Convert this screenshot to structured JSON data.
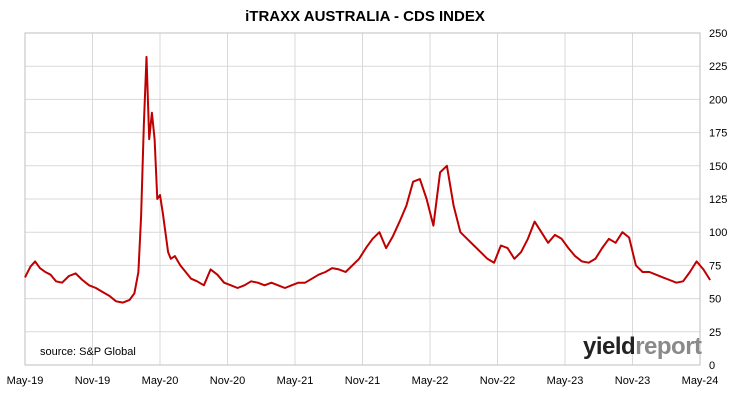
{
  "chart_data": {
    "type": "line",
    "title": "iTRAXX AUSTRALIA - CDS INDEX",
    "source": "source: S&P Global",
    "logo": {
      "part1": "yield",
      "part2": "report"
    },
    "ylim": [
      0,
      250
    ],
    "yticks": [
      "0",
      "25",
      "50",
      "75",
      "100",
      "125",
      "150",
      "175",
      "200",
      "225",
      "250"
    ],
    "xticks": [
      "May-19",
      "Nov-19",
      "May-20",
      "Nov-20",
      "May-21",
      "Nov-21",
      "May-22",
      "Nov-22",
      "May-23",
      "Nov-23",
      "May-24"
    ],
    "grid": true,
    "colors": {
      "series": "#c00000",
      "grid": "#d9d9d9"
    },
    "series": [
      {
        "x": [
          0.0,
          0.08,
          0.15,
          0.22,
          0.3,
          0.38,
          0.46,
          0.55,
          0.65,
          0.75,
          0.85,
          0.95,
          1.05,
          1.15,
          1.25,
          1.35,
          1.45,
          1.55,
          1.62,
          1.68,
          1.72,
          1.76,
          1.8,
          1.84,
          1.88,
          1.92,
          1.96,
          2.0,
          2.04,
          2.08,
          2.12,
          2.16,
          2.22,
          2.3,
          2.38,
          2.46,
          2.55,
          2.65,
          2.75,
          2.85,
          2.95,
          3.05,
          3.15,
          3.25,
          3.35,
          3.45,
          3.55,
          3.65,
          3.75,
          3.85,
          3.95,
          4.05,
          4.15,
          4.25,
          4.35,
          4.45,
          4.55,
          4.65,
          4.75,
          4.85,
          4.95,
          5.05,
          5.15,
          5.25,
          5.35,
          5.45,
          5.55,
          5.65,
          5.75,
          5.85,
          5.95,
          6.05,
          6.15,
          6.25,
          6.35,
          6.45,
          6.55,
          6.65,
          6.75,
          6.85,
          6.95,
          7.05,
          7.15,
          7.25,
          7.35,
          7.45,
          7.55,
          7.65,
          7.75,
          7.85,
          7.95,
          8.05,
          8.15,
          8.25,
          8.35,
          8.45,
          8.55,
          8.65,
          8.75,
          8.85,
          8.95,
          9.05,
          9.15,
          9.25,
          9.35,
          9.45,
          9.55,
          9.65,
          9.75,
          9.85,
          9.95,
          10.05,
          10.15
        ],
        "y": [
          66,
          74,
          78,
          73,
          70,
          68,
          63,
          62,
          67,
          69,
          64,
          60,
          58,
          55,
          52,
          48,
          47,
          49,
          54,
          70,
          112,
          180,
          232,
          170,
          190,
          170,
          125,
          128,
          115,
          100,
          85,
          80,
          82,
          75,
          70,
          65,
          63,
          60,
          72,
          68,
          62,
          60,
          58,
          60,
          63,
          62,
          60,
          62,
          60,
          58,
          60,
          62,
          62,
          65,
          68,
          70,
          73,
          72,
          70,
          75,
          80,
          88,
          95,
          100,
          88,
          97,
          108,
          120,
          138,
          140,
          125,
          105,
          145,
          150,
          120,
          100,
          95,
          90,
          85,
          80,
          77,
          90,
          88,
          80,
          85,
          95,
          108,
          100,
          92,
          98,
          95,
          88,
          82,
          78,
          77,
          80,
          88,
          95,
          92,
          100,
          96,
          75,
          70,
          70,
          68,
          66,
          64,
          62,
          63,
          70,
          78,
          72,
          64
        ]
      }
    ]
  }
}
